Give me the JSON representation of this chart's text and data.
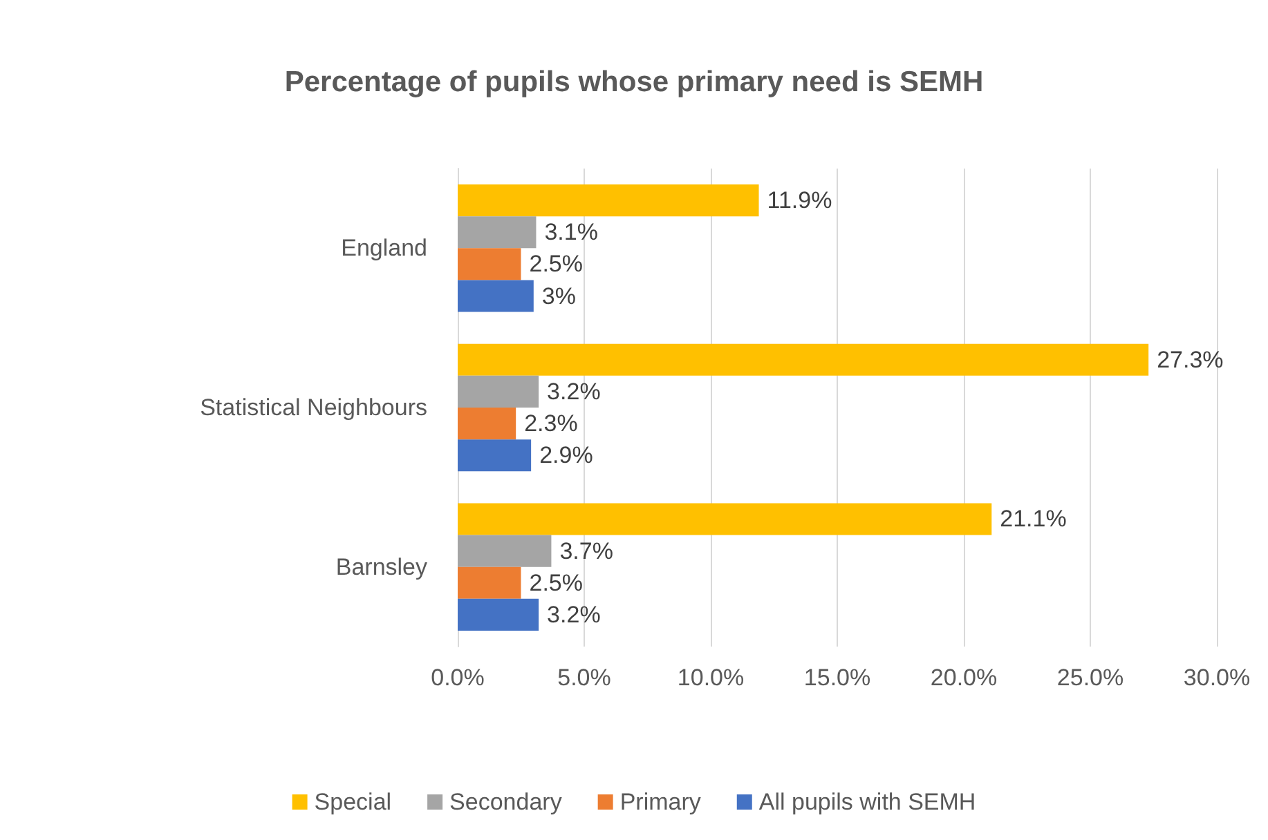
{
  "chart_data": {
    "type": "bar",
    "orientation": "horizontal",
    "title": "Percentage of pupils whose primary need is SEMH",
    "categories": [
      "England",
      "Statistical Neighbours",
      "Barnsley"
    ],
    "series": [
      {
        "name": "Special",
        "color": "#ffc000",
        "values": [
          11.9,
          27.3,
          21.1
        ],
        "value_labels": [
          "11.9%",
          "27.3%",
          "21.1%"
        ]
      },
      {
        "name": "Secondary",
        "color": "#a5a5a5",
        "values": [
          3.1,
          3.2,
          3.7
        ],
        "value_labels": [
          "3.1%",
          "3.2%",
          "3.7%"
        ]
      },
      {
        "name": "Primary",
        "color": "#ed7d31",
        "values": [
          2.5,
          2.3,
          2.5
        ],
        "value_labels": [
          "2.5%",
          "2.3%",
          "2.5%"
        ]
      },
      {
        "name": "All pupils with SEMH",
        "color": "#4472c4",
        "values": [
          3,
          2.9,
          3.2
        ],
        "value_labels": [
          "3%",
          "2.9%",
          "3.2%"
        ]
      }
    ],
    "xlim": [
      0,
      30
    ],
    "xticks": [
      {
        "value": 0,
        "label": "0.0%"
      },
      {
        "value": 5,
        "label": "5.0%"
      },
      {
        "value": 10,
        "label": "10.0%"
      },
      {
        "value": 15,
        "label": "15.0%"
      },
      {
        "value": 20,
        "label": "20.0%"
      },
      {
        "value": 25,
        "label": "25.0%"
      },
      {
        "value": 30,
        "label": "30.0%"
      }
    ],
    "grid": "x",
    "legend": "bottom"
  }
}
